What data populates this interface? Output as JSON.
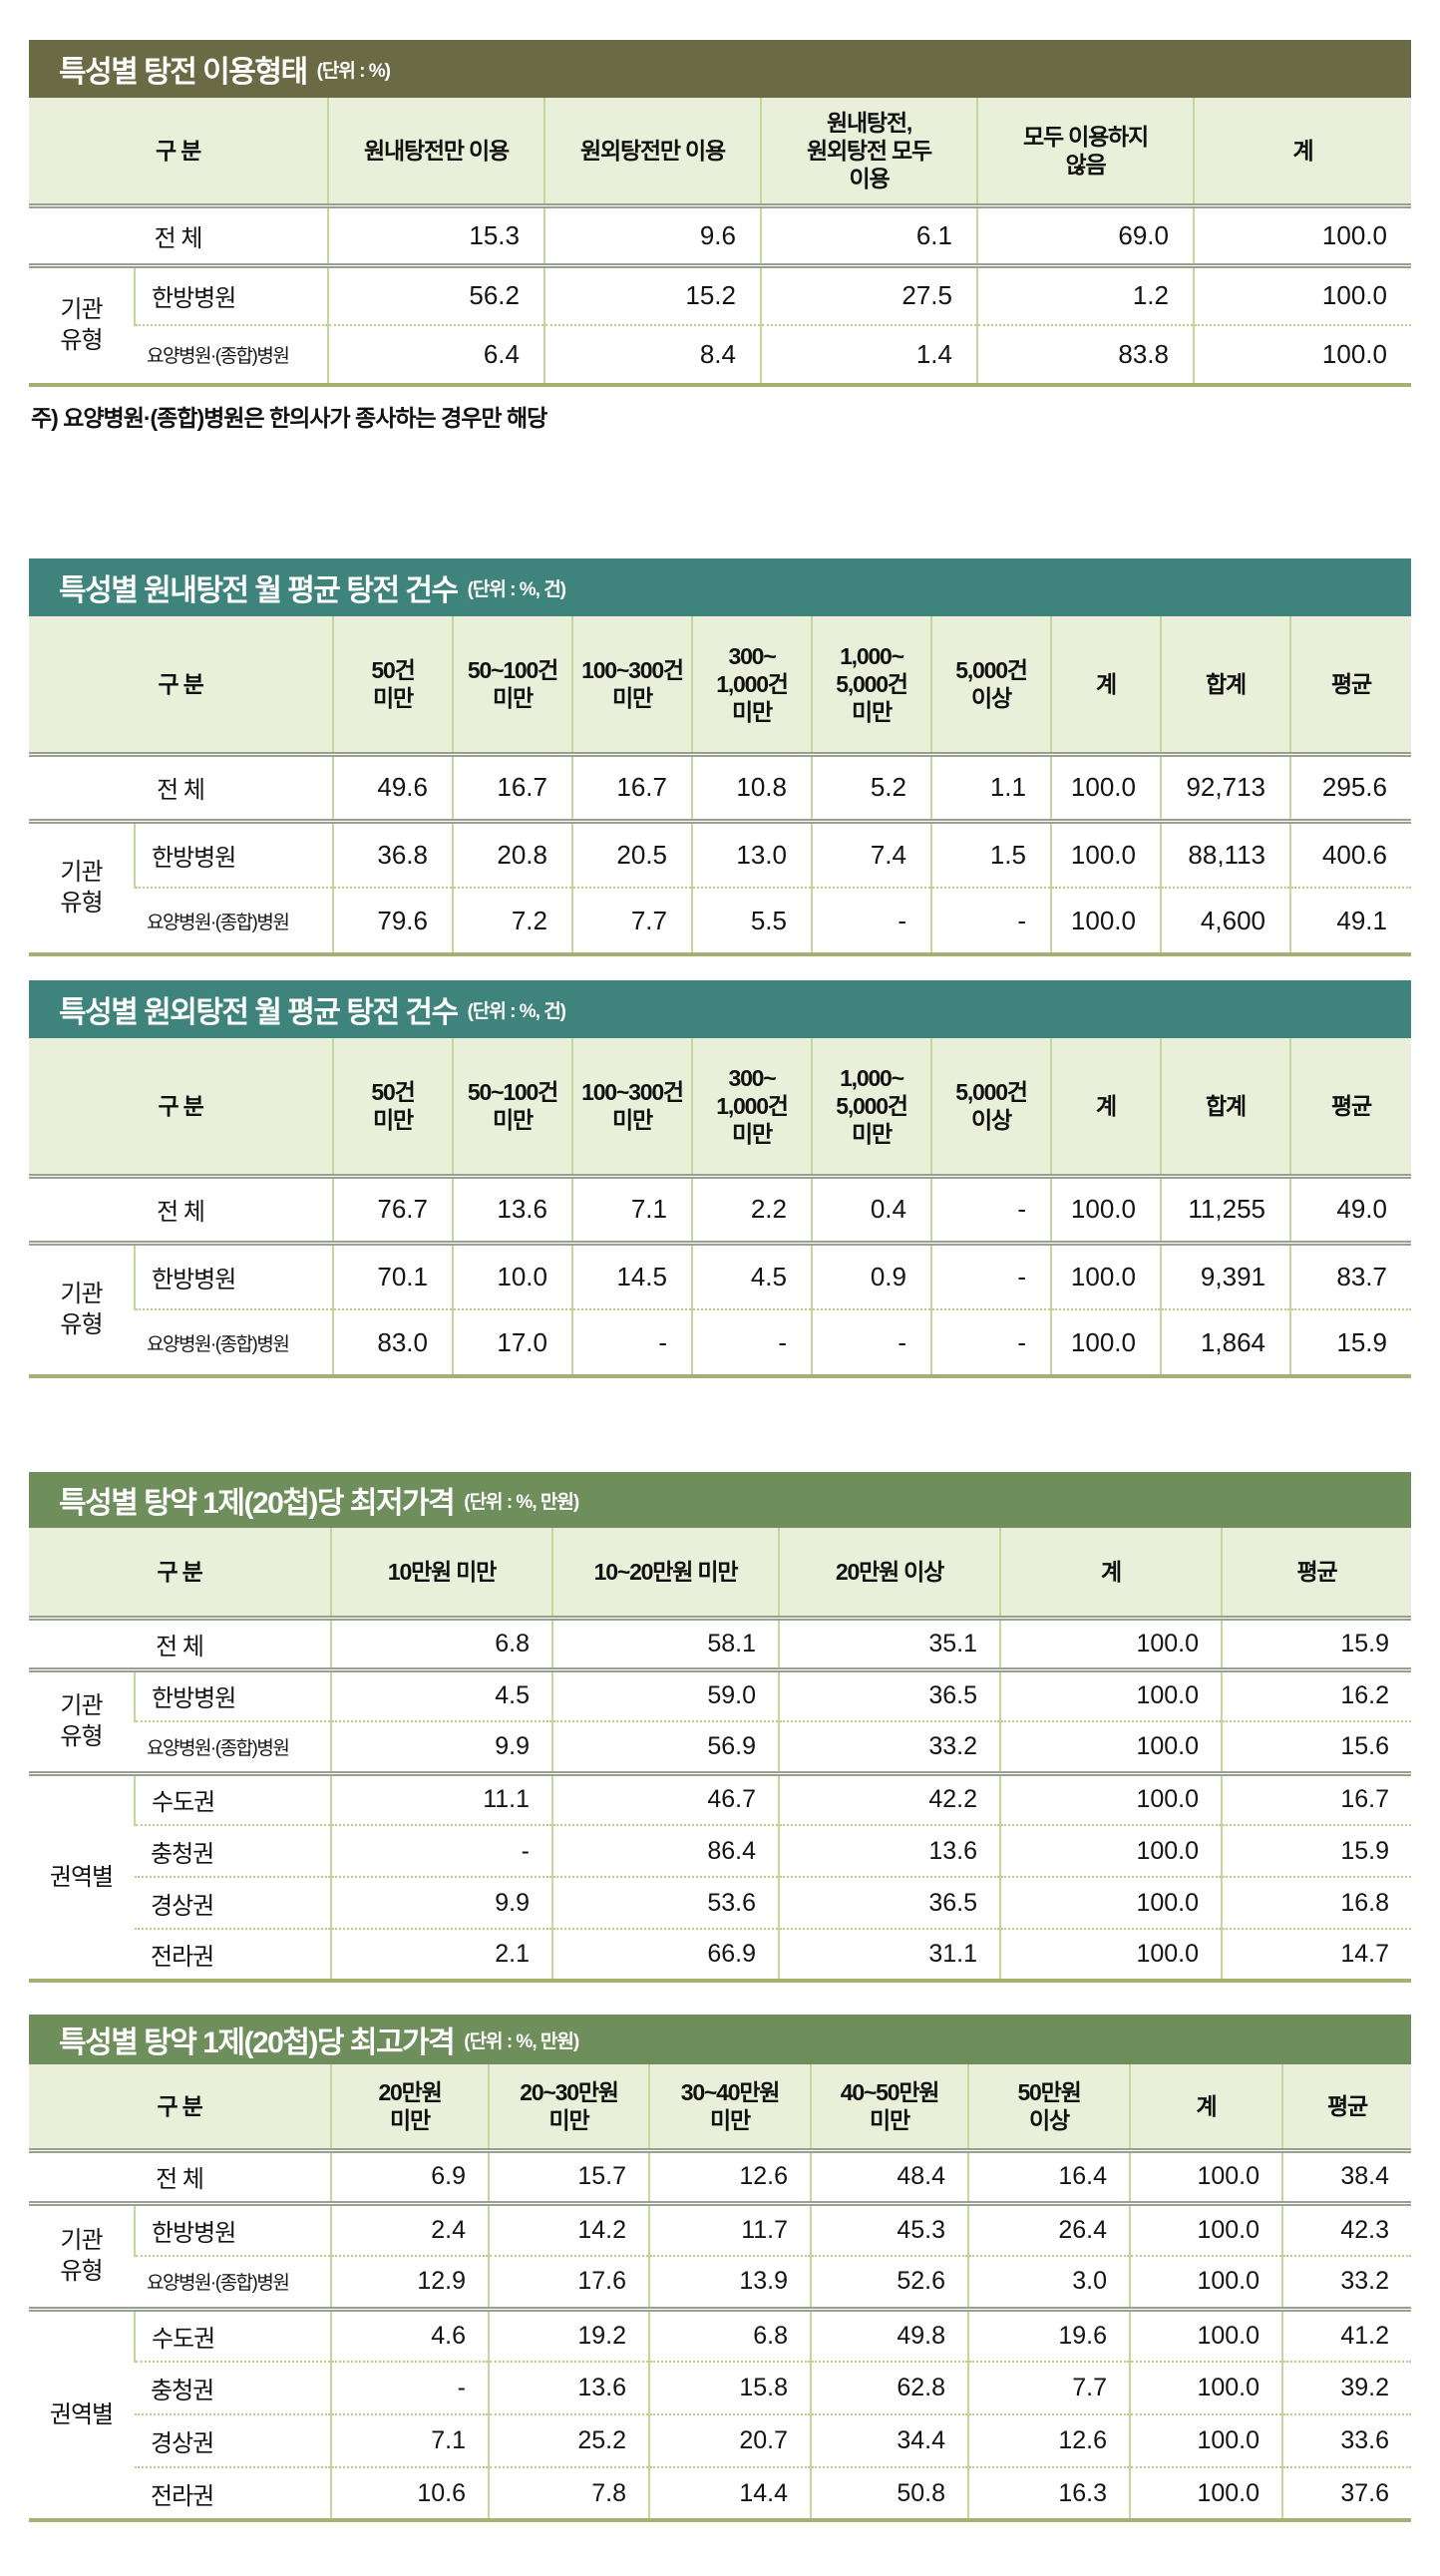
{
  "tables": [
    {
      "title": "특성별 탕전 이용형태",
      "unit": "(단위 : %)",
      "corner_label": "구 분",
      "headers": [
        "원내탕전만 이용",
        "원외탕전만 이용",
        "원내탕전,\n원외탕전 모두\n이용",
        "모두 이용하지\n않음",
        "계"
      ],
      "total_row": {
        "label": "전 체",
        "values": [
          "15.3",
          "9.6",
          "6.1",
          "69.0",
          "100.0"
        ]
      },
      "groups": [
        {
          "label": "기관\n유형",
          "rows": [
            {
              "label": "한방병원",
              "values": [
                "56.2",
                "15.2",
                "27.5",
                "1.2",
                "100.0"
              ]
            },
            {
              "label": "요양병원·(종합)병원",
              "small": true,
              "values": [
                "6.4",
                "8.4",
                "1.4",
                "83.8",
                "100.0"
              ]
            }
          ]
        }
      ],
      "note": "주) 요양병원·(종합)병원은 한의사가 종사하는 경우만 해당"
    },
    {
      "title": "특성별 원내탕전 월 평균 탕전 건수",
      "unit": "(단위 : %, 건)",
      "corner_label": "구 분",
      "headers": [
        "50건\n미만",
        "50~100건\n미만",
        "100~300건\n미만",
        "300~\n1,000건\n미만",
        "1,000~\n5,000건\n미만",
        "5,000건\n이상",
        "계",
        "합계",
        "평균"
      ],
      "total_row": {
        "label": "전 체",
        "values": [
          "49.6",
          "16.7",
          "16.7",
          "10.8",
          "5.2",
          "1.1",
          "100.0",
          "92,713",
          "295.6"
        ]
      },
      "groups": [
        {
          "label": "기관\n유형",
          "rows": [
            {
              "label": "한방병원",
              "values": [
                "36.8",
                "20.8",
                "20.5",
                "13.0",
                "7.4",
                "1.5",
                "100.0",
                "88,113",
                "400.6"
              ]
            },
            {
              "label": "요양병원·(종합)병원",
              "small": true,
              "values": [
                "79.6",
                "7.2",
                "7.7",
                "5.5",
                "-",
                "-",
                "100.0",
                "4,600",
                "49.1"
              ]
            }
          ]
        }
      ]
    },
    {
      "title": "특성별 원외탕전 월 평균 탕전 건수",
      "unit": "(단위 : %, 건)",
      "corner_label": "구 분",
      "headers": [
        "50건\n미만",
        "50~100건\n미만",
        "100~300건\n미만",
        "300~\n1,000건\n미만",
        "1,000~\n5,000건\n미만",
        "5,000건\n이상",
        "계",
        "합계",
        "평균"
      ],
      "total_row": {
        "label": "전 체",
        "values": [
          "76.7",
          "13.6",
          "7.1",
          "2.2",
          "0.4",
          "-",
          "100.0",
          "11,255",
          "49.0"
        ]
      },
      "groups": [
        {
          "label": "기관\n유형",
          "rows": [
            {
              "label": "한방병원",
              "values": [
                "70.1",
                "10.0",
                "14.5",
                "4.5",
                "0.9",
                "-",
                "100.0",
                "9,391",
                "83.7"
              ]
            },
            {
              "label": "요양병원·(종합)병원",
              "small": true,
              "values": [
                "83.0",
                "17.0",
                "-",
                "-",
                "-",
                "-",
                "100.0",
                "1,864",
                "15.9"
              ]
            }
          ]
        }
      ]
    },
    {
      "title": "특성별 탕약 1제(20첩)당 최저가격",
      "unit": "(단위 : %, 만원)",
      "corner_label": "구 분",
      "headers": [
        "10만원 미만",
        "10~20만원 미만",
        "20만원 이상",
        "계",
        "평균"
      ],
      "total_row": {
        "label": "전 체",
        "values": [
          "6.8",
          "58.1",
          "35.1",
          "100.0",
          "15.9"
        ]
      },
      "groups": [
        {
          "label": "기관\n유형",
          "rows": [
            {
              "label": "한방병원",
              "values": [
                "4.5",
                "59.0",
                "36.5",
                "100.0",
                "16.2"
              ]
            },
            {
              "label": "요양병원·(종합)병원",
              "small": true,
              "values": [
                "9.9",
                "56.9",
                "33.2",
                "100.0",
                "15.6"
              ]
            }
          ]
        },
        {
          "label": "권역별",
          "rows": [
            {
              "label": "수도권",
              "values": [
                "11.1",
                "46.7",
                "42.2",
                "100.0",
                "16.7"
              ]
            },
            {
              "label": "충청권",
              "values": [
                "-",
                "86.4",
                "13.6",
                "100.0",
                "15.9"
              ]
            },
            {
              "label": "경상권",
              "values": [
                "9.9",
                "53.6",
                "36.5",
                "100.0",
                "16.8"
              ]
            },
            {
              "label": "전라권",
              "values": [
                "2.1",
                "66.9",
                "31.1",
                "100.0",
                "14.7"
              ]
            }
          ]
        }
      ]
    },
    {
      "title": "특성별 탕약 1제(20첩)당 최고가격",
      "unit": "(단위 : %, 만원)",
      "corner_label": "구 분",
      "headers": [
        "20만원\n미만",
        "20~30만원\n미만",
        "30~40만원\n미만",
        "40~50만원\n미만",
        "50만원\n이상",
        "계",
        "평균"
      ],
      "total_row": {
        "label": "전 체",
        "values": [
          "6.9",
          "15.7",
          "12.6",
          "48.4",
          "16.4",
          "100.0",
          "38.4"
        ]
      },
      "groups": [
        {
          "label": "기관\n유형",
          "rows": [
            {
              "label": "한방병원",
              "values": [
                "2.4",
                "14.2",
                "11.7",
                "45.3",
                "26.4",
                "100.0",
                "42.3"
              ]
            },
            {
              "label": "요양병원·(종합)병원",
              "small": true,
              "values": [
                "12.9",
                "17.6",
                "13.9",
                "52.6",
                "3.0",
                "100.0",
                "33.2"
              ]
            }
          ]
        },
        {
          "label": "권역별",
          "rows": [
            {
              "label": "수도권",
              "values": [
                "4.6",
                "19.2",
                "6.8",
                "49.8",
                "19.6",
                "100.0",
                "41.2"
              ]
            },
            {
              "label": "충청권",
              "values": [
                "-",
                "13.6",
                "15.8",
                "62.8",
                "7.7",
                "100.0",
                "39.2"
              ]
            },
            {
              "label": "경상권",
              "values": [
                "7.1",
                "25.2",
                "20.7",
                "34.4",
                "12.6",
                "100.0",
                "33.6"
              ]
            },
            {
              "label": "전라권",
              "values": [
                "10.6",
                "7.8",
                "14.4",
                "50.8",
                "16.3",
                "100.0",
                "37.6"
              ]
            }
          ]
        }
      ]
    }
  ]
}
